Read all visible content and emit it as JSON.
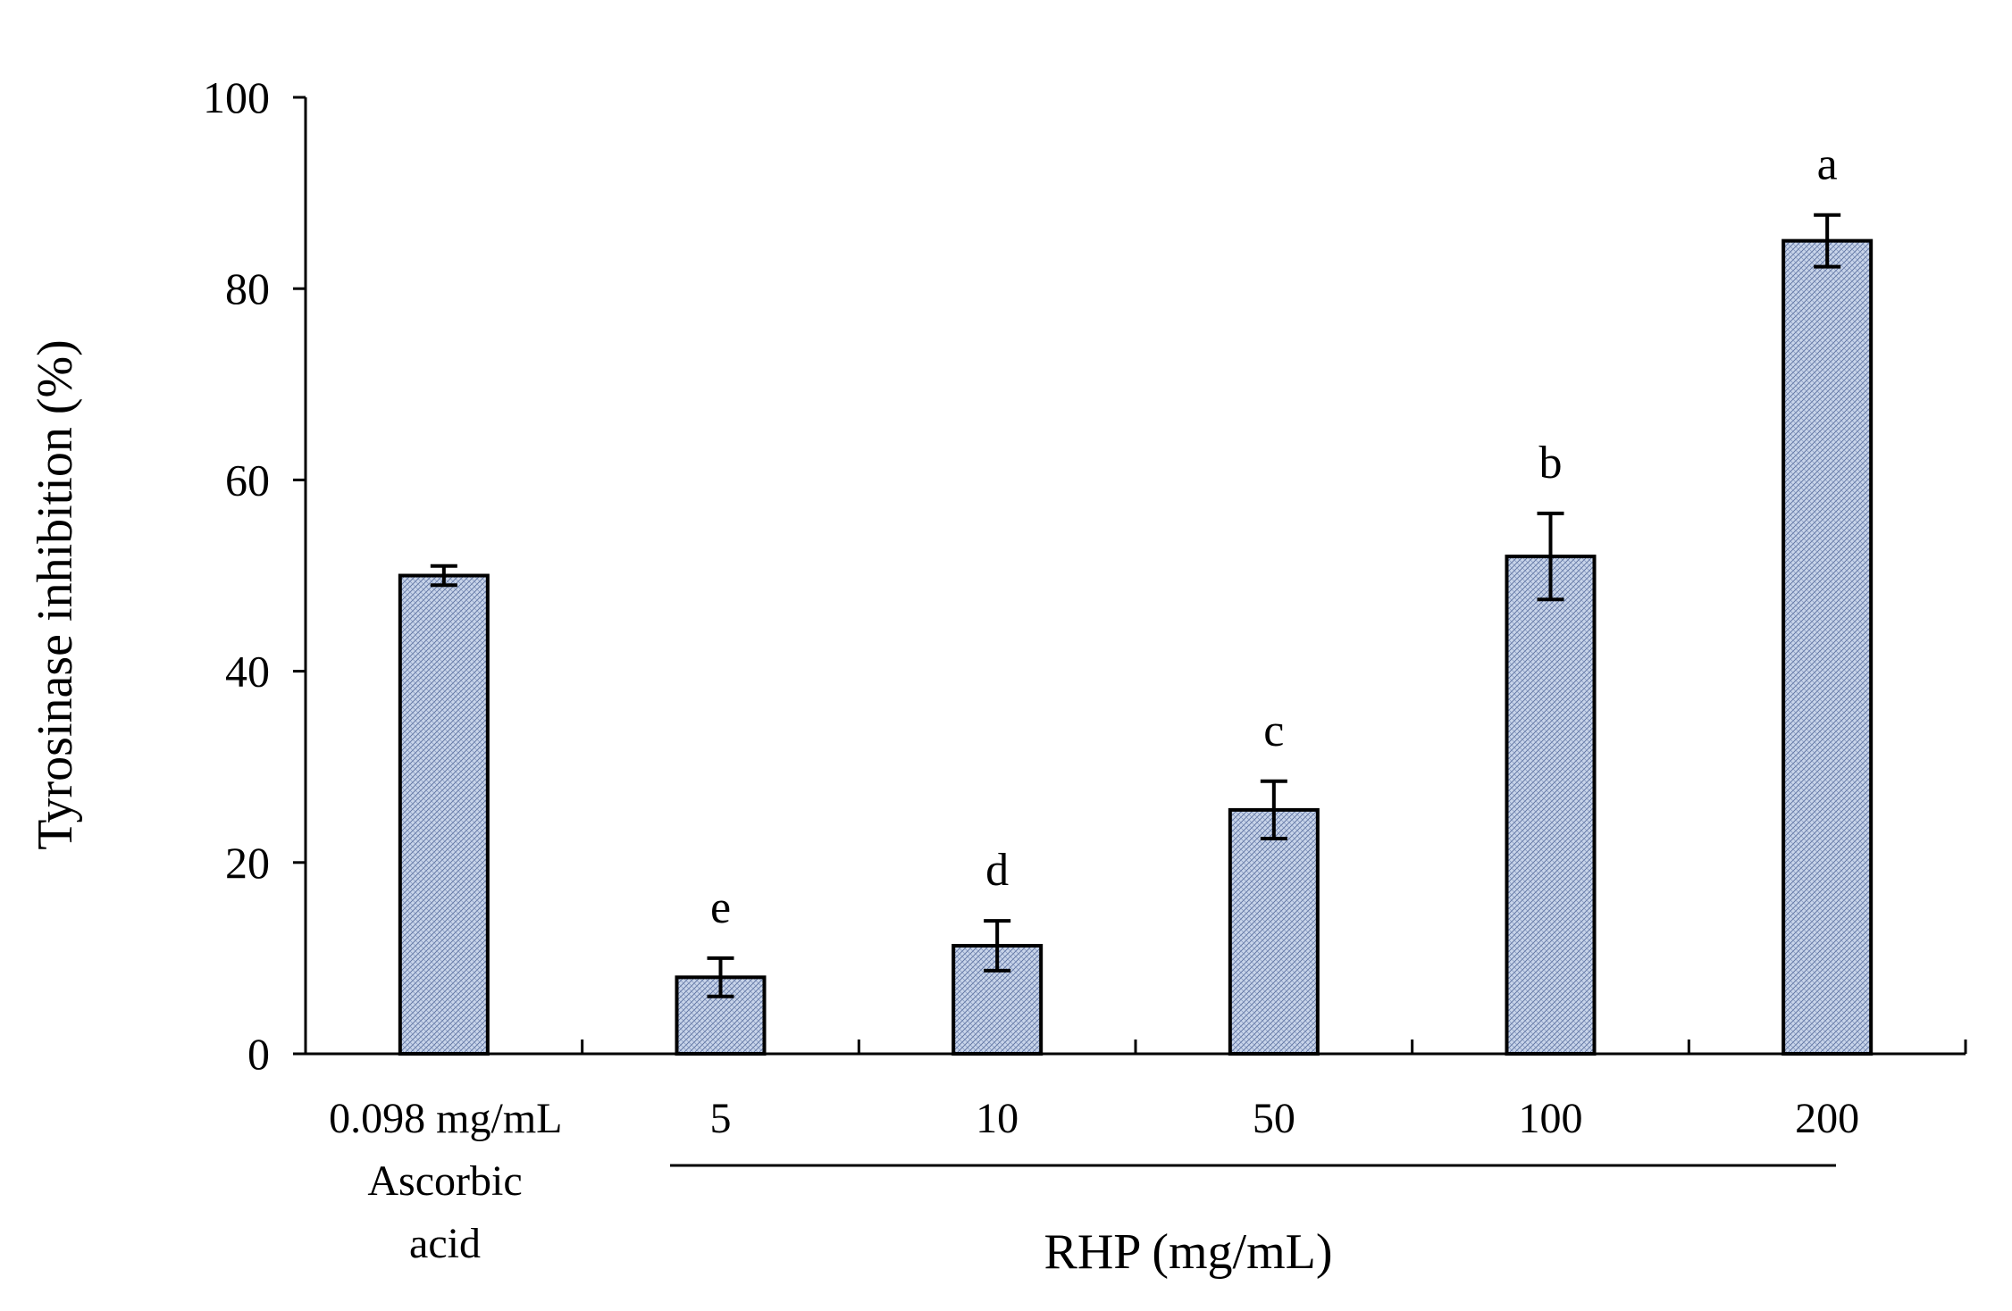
{
  "chart_data": {
    "type": "bar",
    "title": "",
    "ylabel": "Tyrosinase inhibition (%)",
    "xlabel": "RHP (mg/mL)",
    "ylim": [
      0,
      100
    ],
    "yticks": [
      0,
      20,
      40,
      60,
      80,
      100
    ],
    "categories": [
      "0.098 mg/mL",
      "5",
      "10",
      "50",
      "100",
      "200"
    ],
    "control_label_lines": [
      "Ascorbic",
      "acid"
    ],
    "values": [
      50,
      8,
      11.3,
      25.5,
      52,
      85
    ],
    "errors": [
      1,
      2,
      2.6,
      3,
      4.5,
      2.7
    ],
    "significance_letters": [
      "",
      "e",
      "d",
      "c",
      "b",
      "a"
    ],
    "grid": false,
    "bar_fill_color": "#c9d5ea",
    "bar_edge_color": "#000000"
  }
}
